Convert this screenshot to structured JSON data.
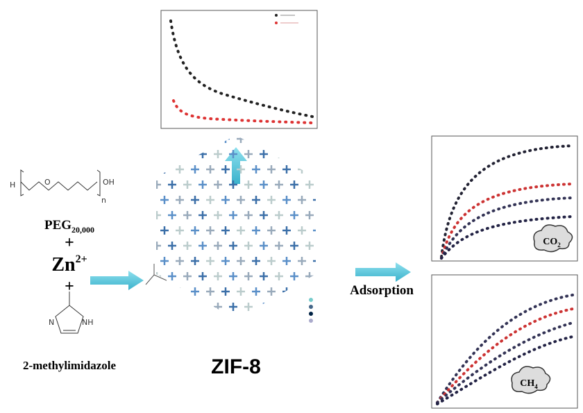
{
  "reactants": {
    "peg": {
      "label": "PEG",
      "sub": "20,000",
      "atoms": {
        "h": "H",
        "o": "O",
        "n": "n",
        "oh": "OH"
      }
    },
    "plus_1": "+",
    "zinc": {
      "label": "Zn",
      "sup": "2+"
    },
    "plus_2": "+",
    "imidazole": {
      "atoms": {
        "n": "N",
        "nh": "NH"
      },
      "label": "2-methylimidazole"
    }
  },
  "framework": {
    "label": "ZIF-8"
  },
  "process": {
    "label": "Adsorption"
  },
  "gases": {
    "co2": {
      "label": "CO",
      "sub": "2"
    },
    "ch4": {
      "label": "CH",
      "sub": "4"
    }
  }
}
